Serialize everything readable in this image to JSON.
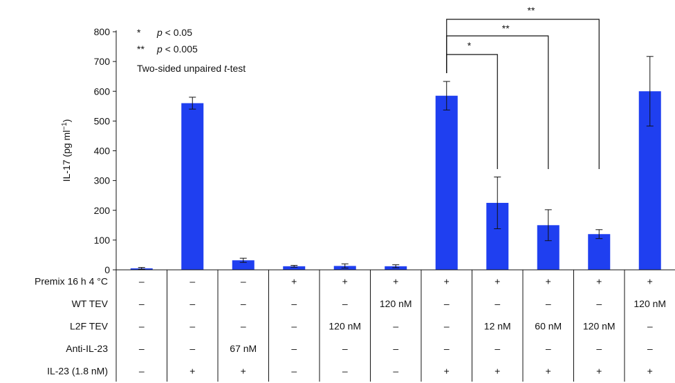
{
  "chart_data": {
    "type": "bar",
    "ylabel_prefix": "IL-17 (pg ml",
    "ylabel_sup": "−1",
    "ylabel_suffix": ")",
    "ylim": [
      0,
      800
    ],
    "yticks": [
      0,
      100,
      200,
      300,
      400,
      500,
      600,
      700,
      800
    ],
    "bar_color": "#1f3ff0",
    "values": [
      5,
      560,
      32,
      12,
      13,
      12,
      585,
      225,
      150,
      120,
      600
    ],
    "errors": [
      3,
      20,
      7,
      3,
      7,
      5,
      48,
      87,
      52,
      15,
      117
    ],
    "legend": [
      {
        "marker": "*",
        "text": "p < 0.05"
      },
      {
        "marker": "**",
        "text": "p < 0.005"
      }
    ],
    "test_label": "Two-sided unpaired t-test",
    "comparisons": [
      {
        "from": 6,
        "to": 7,
        "label": "*"
      },
      {
        "from": 6,
        "to": 8,
        "label": "**"
      },
      {
        "from": 6,
        "to": 9,
        "label": "**"
      }
    ],
    "conditions": [
      {
        "label": "Premix 16 h 4 °C",
        "values": [
          "–",
          "–",
          "–",
          "+",
          "+",
          "+",
          "+",
          "+",
          "+",
          "+",
          "+"
        ]
      },
      {
        "label": "WT TEV",
        "values": [
          "–",
          "–",
          "–",
          "–",
          "–",
          "120 nM",
          "–",
          "–",
          "–",
          "–",
          "120 nM"
        ]
      },
      {
        "label": "L2F TEV",
        "values": [
          "–",
          "–",
          "–",
          "–",
          "120 nM",
          "–",
          "–",
          "12 nM",
          "60 nM",
          "120 nM",
          "–"
        ]
      },
      {
        "label": "Anti-IL-23",
        "values": [
          "–",
          "–",
          "67 nM",
          "–",
          "–",
          "–",
          "–",
          "–",
          "–",
          "–",
          "–"
        ]
      },
      {
        "label": "IL-23 (1.8 nM)",
        "values": [
          "–",
          "+",
          "+",
          "–",
          "–",
          "–",
          "+",
          "+",
          "+",
          "+",
          "+"
        ]
      }
    ]
  }
}
